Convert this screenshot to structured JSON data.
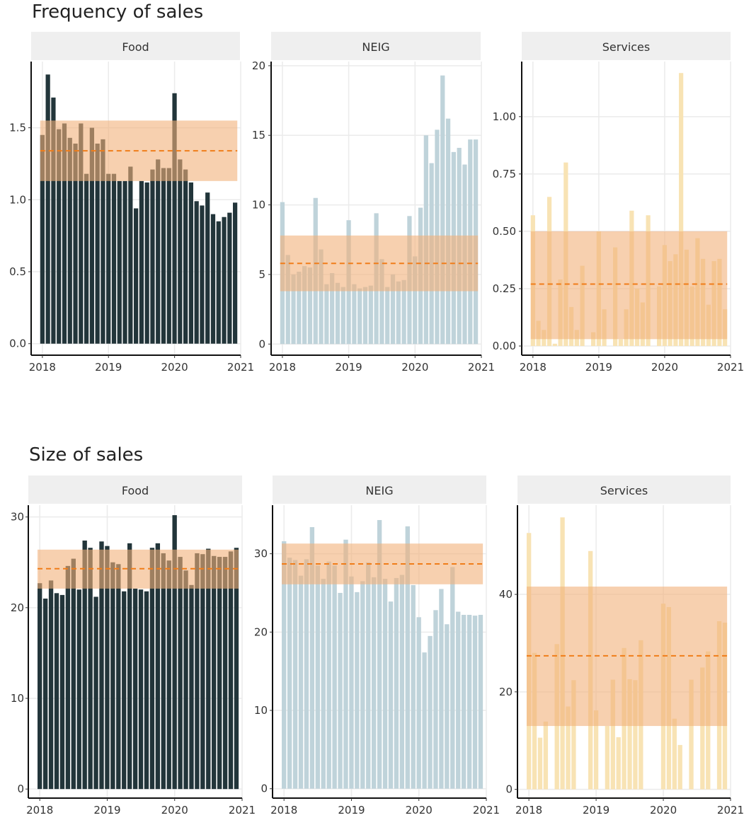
{
  "sections": [
    {
      "title": "Frequency of sales",
      "panels": [
        {
          "strip": "Food",
          "color": "#22353a"
        },
        {
          "strip": "NEIG",
          "color": "#bfd3da"
        },
        {
          "strip": "Services",
          "color": "#f8e3b4"
        }
      ]
    },
    {
      "title": "Size of sales",
      "panels": [
        {
          "strip": "Food",
          "color": "#22353a"
        },
        {
          "strip": "NEIG",
          "color": "#bfd3da"
        },
        {
          "strip": "Services",
          "color": "#f8e3b4"
        }
      ]
    }
  ],
  "colors": {
    "band": "#f2b07a",
    "mean_line": "#f07d1a",
    "strip_bg": "#efefef",
    "grid": "#ebebeb"
  },
  "chart_data": [
    {
      "type": "bar",
      "section": "Frequency of sales",
      "facet": "Food",
      "x_start": 2018.0,
      "x_step": 0.0833,
      "x_ticks": [
        2018,
        2019,
        2020,
        2021
      ],
      "y_ticks": [
        0.0,
        0.5,
        1.0,
        1.5
      ],
      "y_tick_labels": [
        "0.0",
        "0.5",
        "1.0",
        "1.5"
      ],
      "xlim": [
        2017.83,
        2021.0
      ],
      "ylim": [
        -0.08,
        1.96
      ],
      "values": [
        1.45,
        1.87,
        1.71,
        1.49,
        1.53,
        1.43,
        1.39,
        1.53,
        1.18,
        1.5,
        1.39,
        1.42,
        1.18,
        1.18,
        1.13,
        1.13,
        1.23,
        0.94,
        1.13,
        1.12,
        1.21,
        1.28,
        1.22,
        1.22,
        1.74,
        1.28,
        1.21,
        1.12,
        0.99,
        0.96,
        1.05,
        0.9,
        0.85,
        0.88,
        0.91,
        0.98
      ],
      "band": [
        1.13,
        1.55
      ],
      "mean": 1.34
    },
    {
      "type": "bar",
      "section": "Frequency of sales",
      "facet": "NEIG",
      "x_start": 2018.0,
      "x_step": 0.0833,
      "x_ticks": [
        2018,
        2019,
        2020,
        2021
      ],
      "y_ticks": [
        0,
        5,
        10,
        15,
        20
      ],
      "y_tick_labels": [
        "0",
        "5",
        "10",
        "15",
        "20"
      ],
      "xlim": [
        2017.83,
        2021.0
      ],
      "ylim": [
        -0.8,
        20.3
      ],
      "values": [
        10.2,
        6.4,
        5.0,
        5.2,
        5.6,
        5.5,
        10.5,
        6.8,
        4.3,
        5.1,
        4.4,
        4.1,
        8.9,
        4.3,
        4.0,
        4.1,
        4.2,
        9.4,
        6.1,
        4.1,
        5.0,
        4.5,
        4.6,
        9.2,
        6.3,
        9.8,
        15.0,
        13.0,
        15.4,
        19.3,
        16.2,
        13.8,
        14.1,
        12.9,
        14.7,
        14.7
      ],
      "band": [
        3.8,
        7.8
      ],
      "mean": 5.8
    },
    {
      "type": "bar",
      "section": "Frequency of sales",
      "facet": "Services",
      "x_start": 2018.0,
      "x_step": 0.0833,
      "x_ticks": [
        2018,
        2019,
        2020,
        2021
      ],
      "y_ticks": [
        0.0,
        0.25,
        0.5,
        0.75,
        1.0
      ],
      "y_tick_labels": [
        "0.00",
        "0.25",
        "0.50",
        "0.75",
        "1.00"
      ],
      "xlim": [
        2017.83,
        2021.0
      ],
      "ylim": [
        -0.04,
        1.24
      ],
      "values": [
        0.57,
        0.11,
        0.07,
        0.65,
        0.01,
        0.29,
        0.8,
        0.17,
        0.07,
        0.35,
        0.0,
        0.06,
        0.5,
        0.16,
        0.0,
        0.43,
        0.03,
        0.16,
        0.59,
        0.25,
        0.19,
        0.57,
        0.0,
        0.26,
        0.44,
        0.37,
        0.4,
        1.19,
        0.42,
        0.26,
        0.47,
        0.38,
        0.18,
        0.37,
        0.38,
        0.16
      ],
      "band": [
        0.03,
        0.5
      ],
      "mean": 0.27
    },
    {
      "type": "bar",
      "section": "Size of sales",
      "facet": "Food",
      "x_start": 2018.0,
      "x_step": 0.0833,
      "x_ticks": [
        2018,
        2019,
        2020,
        2021
      ],
      "y_ticks": [
        0,
        10,
        20,
        30
      ],
      "y_tick_labels": [
        "0",
        "10",
        "20",
        "30"
      ],
      "xlim": [
        2017.83,
        2021.0
      ],
      "ylim": [
        -1.0,
        31.3
      ],
      "values": [
        22.7,
        21.0,
        23.0,
        21.6,
        21.4,
        24.6,
        25.4,
        22.0,
        27.4,
        26.6,
        21.2,
        27.3,
        26.8,
        25.0,
        24.8,
        21.8,
        27.1,
        22.1,
        22.0,
        21.8,
        26.6,
        27.1,
        26.0,
        25.2,
        30.2,
        25.6,
        24.1,
        22.5,
        26.0,
        25.9,
        26.5,
        25.7,
        25.6,
        25.6,
        26.2,
        26.6
      ],
      "band": [
        22.1,
        26.4
      ],
      "mean": 24.3
    },
    {
      "type": "bar",
      "section": "Size of sales",
      "facet": "NEIG",
      "x_start": 2018.0,
      "x_step": 0.0833,
      "x_ticks": [
        2018,
        2019,
        2020,
        2021
      ],
      "y_ticks": [
        0,
        10,
        20,
        30
      ],
      "y_tick_labels": [
        "0",
        "10",
        "20",
        "30"
      ],
      "xlim": [
        2017.83,
        2021.0
      ],
      "ylim": [
        -1.2,
        36.2
      ],
      "values": [
        31.6,
        29.5,
        29.2,
        27.2,
        29.3,
        33.4,
        28.5,
        26.8,
        29.0,
        28.5,
        25.0,
        31.8,
        27.1,
        25.1,
        26.5,
        28.9,
        27.0,
        34.3,
        26.8,
        23.9,
        26.9,
        27.3,
        33.5,
        26.0,
        21.9,
        17.4,
        19.5,
        22.8,
        25.5,
        21.0,
        28.3,
        22.6,
        22.2,
        22.2,
        22.1,
        22.2
      ],
      "band": [
        26.1,
        31.3
      ],
      "mean": 28.7
    },
    {
      "type": "bar",
      "section": "Size of sales",
      "facet": "Services",
      "x_start": 2018.0,
      "x_step": 0.0833,
      "x_ticks": [
        2018,
        2019,
        2020,
        2021
      ],
      "y_ticks": [
        0,
        20,
        40
      ],
      "y_tick_labels": [
        "0",
        "20",
        "40"
      ],
      "xlim": [
        2017.83,
        2021.0
      ],
      "ylim": [
        -1.8,
        58.3
      ],
      "values": [
        52.6,
        28.0,
        10.6,
        13.9,
        0,
        29.8,
        55.8,
        17.0,
        22.4,
        0,
        0,
        48.9,
        16.2,
        0,
        13.0,
        22.5,
        10.7,
        29.0,
        22.6,
        22.4,
        30.6,
        0,
        0,
        0,
        38.1,
        37.4,
        14.5,
        9.1,
        0,
        22.5,
        0,
        25.0,
        28.3,
        0,
        34.5,
        34.2
      ],
      "band": [
        13.0,
        41.6
      ],
      "mean": 27.4
    }
  ]
}
